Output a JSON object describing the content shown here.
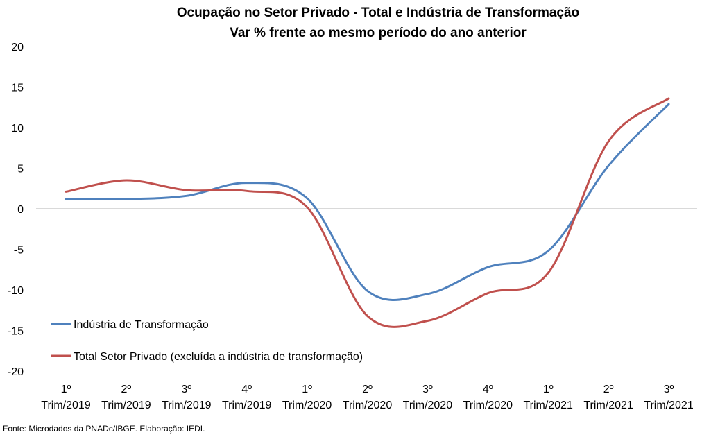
{
  "chart_data": {
    "type": "line",
    "title": "Ocupação no Setor Privado - Total e Indústria de Transformação",
    "subtitle": "Var % frente ao mesmo período do ano anterior",
    "categories": [
      [
        "1º",
        "Trim/2019"
      ],
      [
        "2º",
        "Trim/2019"
      ],
      [
        "3º",
        "Trim/2019"
      ],
      [
        "4º",
        "Trim/2019"
      ],
      [
        "1º",
        "Trim/2020"
      ],
      [
        "2º",
        "Trim/2020"
      ],
      [
        "3º",
        "Trim/2020"
      ],
      [
        "4º",
        "Trim/2020"
      ],
      [
        "1º",
        "Trim/2021"
      ],
      [
        "2º",
        "Trim/2021"
      ],
      [
        "3º",
        "Trim/2021"
      ]
    ],
    "ylim": [
      -20,
      20
    ],
    "yticks": [
      20,
      15,
      10,
      5,
      0,
      -5,
      -10,
      -15,
      -20
    ],
    "series": [
      {
        "name": "Indústria de Transformação",
        "color": "#4f81bd",
        "values": [
          1.2,
          1.2,
          1.6,
          3.2,
          1.3,
          -10.1,
          -10.5,
          -7.2,
          -5.2,
          5.3,
          12.9
        ]
      },
      {
        "name": "Total Setor Privado (excluída a indústria de transformação)",
        "color": "#c0504d",
        "values": [
          2.1,
          3.5,
          2.3,
          2.2,
          0.2,
          -13.2,
          -13.8,
          -10.4,
          -7.9,
          8.3,
          13.6
        ]
      }
    ]
  },
  "source_note": "Fonte: Microdados da PNADc/IBGE. Elaboração: IEDI."
}
